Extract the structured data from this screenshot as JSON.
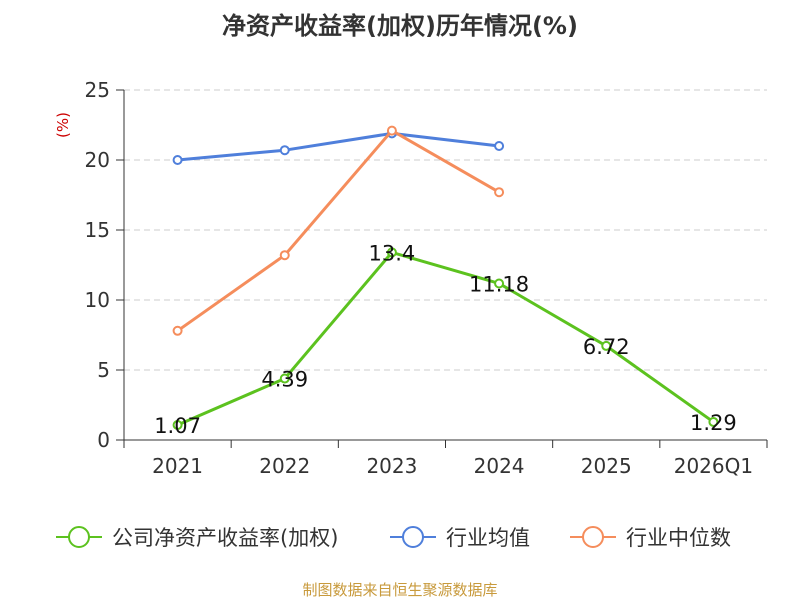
{
  "chart_data": {
    "type": "line",
    "title": "净资产收益率(加权)历年情况(%)",
    "ylabel": "(%)",
    "xlabel": "",
    "ylim": [
      0,
      25
    ],
    "yticks": [
      0,
      5,
      10,
      15,
      20,
      25
    ],
    "categories": [
      "2021",
      "2022",
      "2023",
      "2024",
      "2025",
      "2026Q1"
    ],
    "grid": true,
    "legend_position": "bottom",
    "series": [
      {
        "name": "公司净资产收益率(加权)",
        "color": "#5cc21f",
        "values": [
          1.07,
          4.39,
          13.4,
          11.18,
          6.72,
          1.29
        ],
        "labels": [
          "1.07",
          "4.39",
          "13.4",
          "11.18",
          "6.72",
          "1.29"
        ]
      },
      {
        "name": "行业均值",
        "color": "#4f7fdb",
        "values": [
          20.0,
          20.7,
          21.9,
          21.0,
          null,
          null
        ]
      },
      {
        "name": "行业中位数",
        "color": "#f58d5c",
        "values": [
          7.8,
          13.2,
          22.1,
          17.7,
          null,
          null
        ]
      }
    ]
  },
  "source": "制图数据来自恒生聚源数据库"
}
